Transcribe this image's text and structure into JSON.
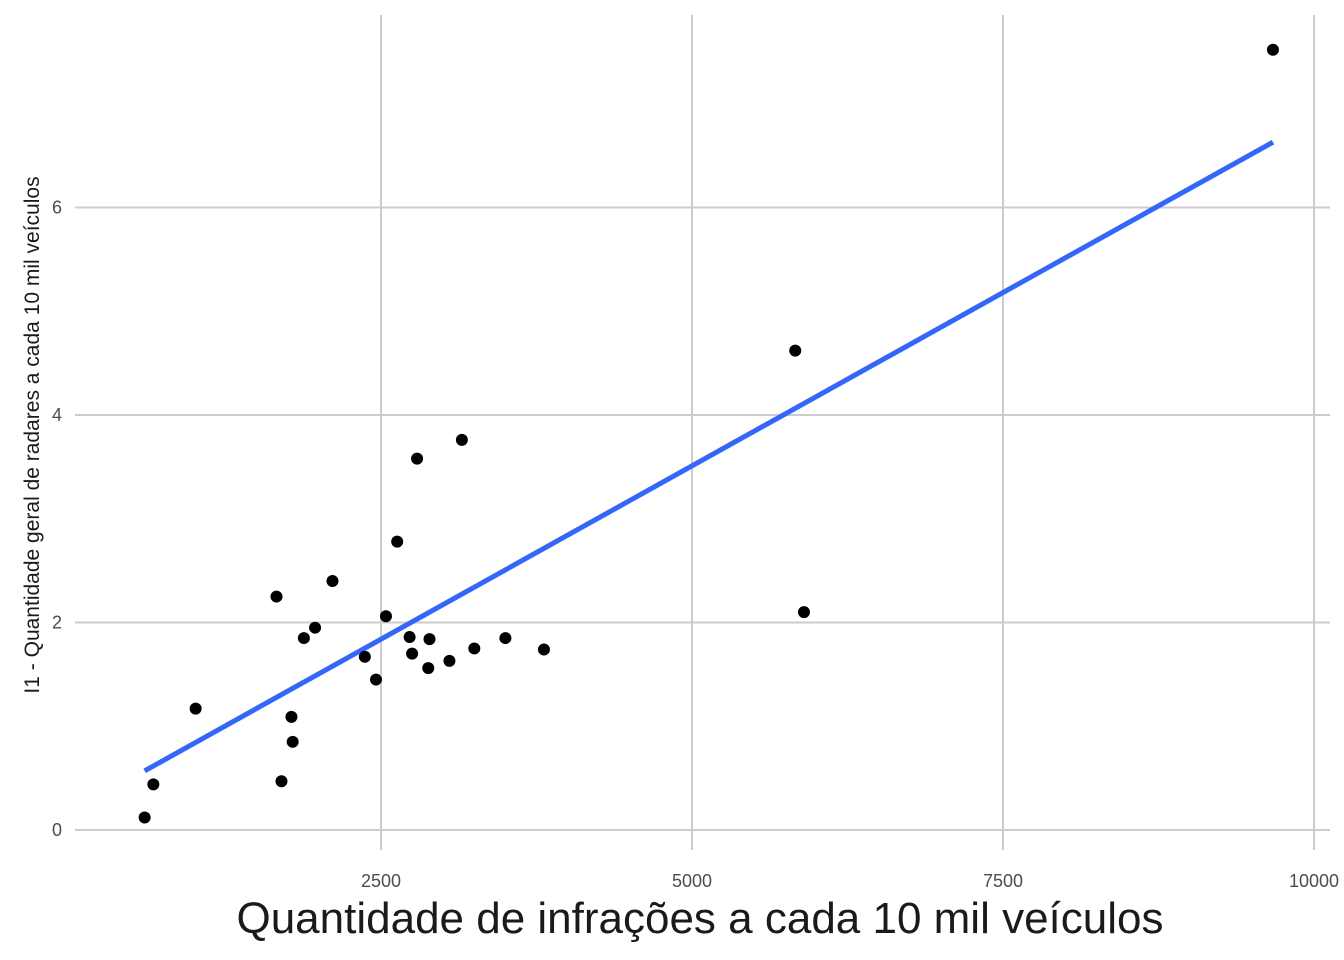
{
  "chart_data": {
    "type": "scatter",
    "title": "",
    "xlabel": "Quantidade de infrações a cada 10 mil veículos",
    "ylabel": "I1 - Quantidade geral de radares a cada 10 mil veículos",
    "xlim": [
      150,
      10000
    ],
    "ylim": [
      -0.1,
      7.7
    ],
    "x_ticks": [
      2500,
      5000,
      7500,
      10000
    ],
    "x_tick_labels": [
      "2500",
      "5000",
      "7500",
      "10000"
    ],
    "y_ticks": [
      0,
      2,
      4,
      6
    ],
    "y_tick_labels": [
      "0",
      "2",
      "4",
      "6"
    ],
    "grid": true,
    "colors": {
      "points": "#000000",
      "trend": "#3366ff",
      "grid": "#cccccc"
    },
    "points": [
      {
        "x": 600,
        "y": 0.12
      },
      {
        "x": 670,
        "y": 0.44
      },
      {
        "x": 1010,
        "y": 1.17
      },
      {
        "x": 1660,
        "y": 2.25
      },
      {
        "x": 1700,
        "y": 0.47
      },
      {
        "x": 1780,
        "y": 1.09
      },
      {
        "x": 1790,
        "y": 0.85
      },
      {
        "x": 1880,
        "y": 1.85
      },
      {
        "x": 1970,
        "y": 1.95
      },
      {
        "x": 2110,
        "y": 2.4
      },
      {
        "x": 2370,
        "y": 1.67
      },
      {
        "x": 2460,
        "y": 1.45
      },
      {
        "x": 2540,
        "y": 2.06
      },
      {
        "x": 2630,
        "y": 2.78
      },
      {
        "x": 2730,
        "y": 1.86
      },
      {
        "x": 2750,
        "y": 1.7
      },
      {
        "x": 2790,
        "y": 3.58
      },
      {
        "x": 2880,
        "y": 1.56
      },
      {
        "x": 2890,
        "y": 1.84
      },
      {
        "x": 3050,
        "y": 1.63
      },
      {
        "x": 3150,
        "y": 3.76
      },
      {
        "x": 3250,
        "y": 1.75
      },
      {
        "x": 3500,
        "y": 1.85
      },
      {
        "x": 3810,
        "y": 1.74
      },
      {
        "x": 5830,
        "y": 4.62
      },
      {
        "x": 5900,
        "y": 2.1
      },
      {
        "x": 9670,
        "y": 7.52
      }
    ],
    "trend_line": {
      "x": [
        600,
        9670
      ],
      "y": [
        0.57,
        6.63
      ]
    }
  }
}
